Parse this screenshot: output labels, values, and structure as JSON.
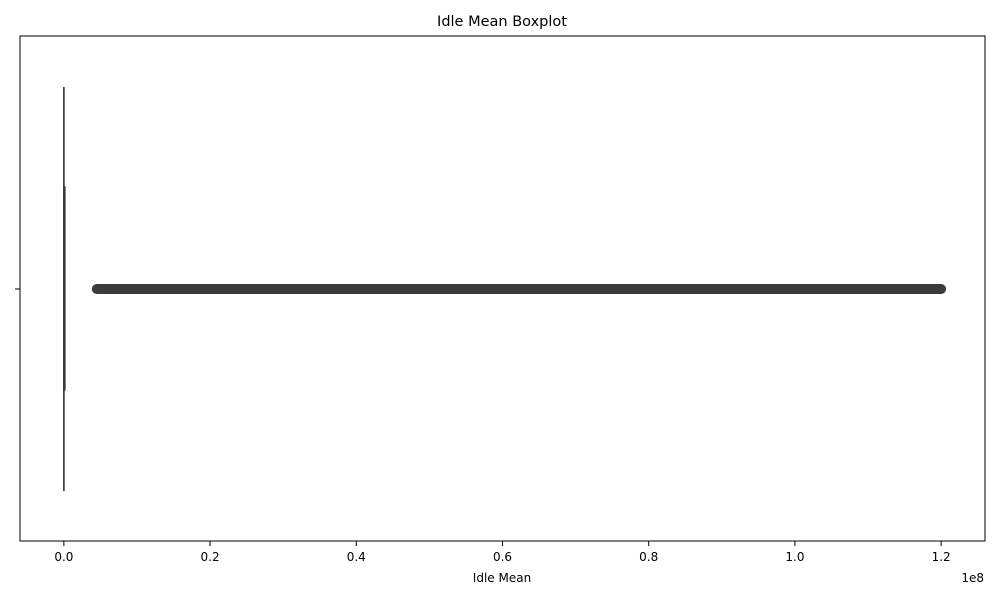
{
  "chart_data": {
    "type": "boxplot",
    "title": "Idle Mean Boxplot",
    "xlabel": "Idle Mean",
    "ylabel": "",
    "x_offset_label": "1e8",
    "x_scale_factor": 100000000,
    "xlim": [
      -0.06,
      1.26
    ],
    "xticks": [
      0.0,
      0.2,
      0.4,
      0.6,
      0.8,
      1.0,
      1.2
    ],
    "xtick_labels": [
      "0.0",
      "0.2",
      "0.4",
      "0.6",
      "0.8",
      "1.0",
      "1.2"
    ],
    "grid": false,
    "box": {
      "whisker_low": 0.0,
      "q1": 0.0,
      "median": 0.0,
      "q3": 0.0,
      "whisker_high": 0.0,
      "outliers_range": [
        0.045,
        1.2
      ]
    },
    "colors": {
      "box_line": "#3b3b3b",
      "outlier": "#3b3b3b"
    }
  }
}
